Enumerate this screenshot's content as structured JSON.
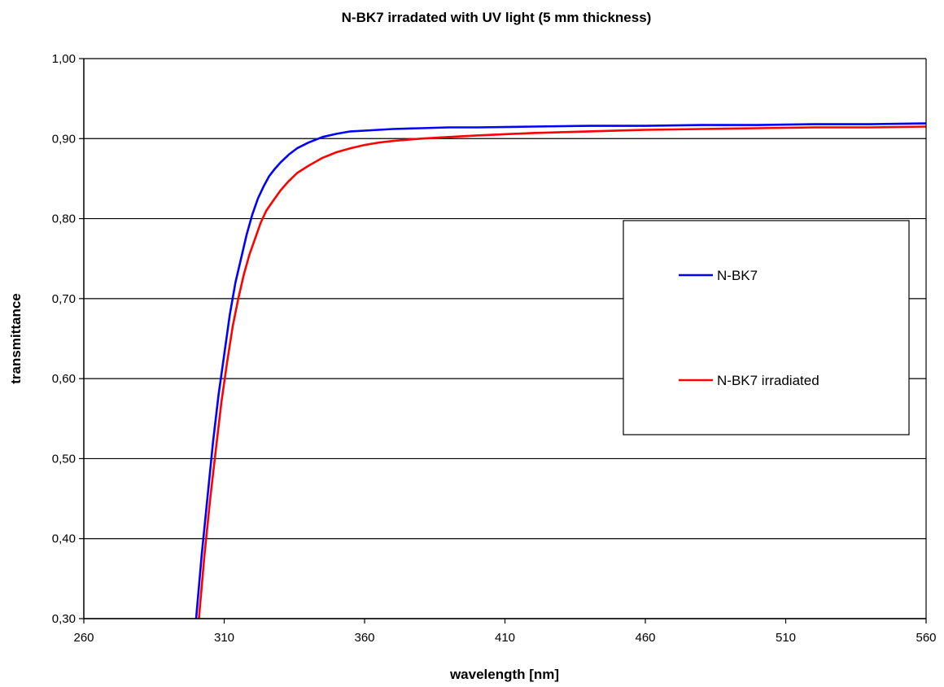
{
  "chart_data": {
    "type": "line",
    "title": "N-BK7 irradated with UV light (5 mm thickness)",
    "xlabel": "wavelength [nm]",
    "ylabel": "transmittance",
    "xlim": [
      260,
      560
    ],
    "ylim": [
      0.3,
      1.0
    ],
    "x_ticks": [
      260,
      310,
      360,
      410,
      460,
      510,
      560
    ],
    "x_tick_labels": [
      "260",
      "310",
      "360",
      "410",
      "460",
      "510",
      "560"
    ],
    "y_ticks": [
      0.3,
      0.4,
      0.5,
      0.6,
      0.7,
      0.8,
      0.9,
      1.0
    ],
    "y_tick_labels": [
      "0,30",
      "0,40",
      "0,50",
      "0,60",
      "0,70",
      "0,80",
      "0,90",
      "1,00"
    ],
    "grid": "horizontal",
    "legend_position": "right",
    "series": [
      {
        "name": "N-BK7",
        "color": "#0000ff",
        "x": [
          300,
          302,
          304,
          306,
          308,
          310,
          312,
          314,
          316,
          318,
          320,
          322,
          324,
          326,
          328,
          330,
          333,
          336,
          340,
          345,
          350,
          355,
          360,
          370,
          380,
          390,
          400,
          420,
          440,
          460,
          480,
          500,
          520,
          540,
          560
        ],
        "y": [
          0.3,
          0.38,
          0.45,
          0.52,
          0.58,
          0.63,
          0.68,
          0.72,
          0.75,
          0.78,
          0.805,
          0.825,
          0.84,
          0.853,
          0.862,
          0.87,
          0.88,
          0.888,
          0.895,
          0.902,
          0.906,
          0.909,
          0.91,
          0.912,
          0.913,
          0.914,
          0.914,
          0.915,
          0.916,
          0.916,
          0.917,
          0.917,
          0.918,
          0.918,
          0.919
        ]
      },
      {
        "name": "N-BK7 irradiated",
        "color": "#ff0000",
        "x": [
          301,
          303,
          305,
          307,
          309,
          311,
          313,
          315,
          317,
          319,
          321,
          323,
          325,
          327,
          330,
          333,
          336,
          340,
          345,
          350,
          355,
          360,
          365,
          370,
          380,
          390,
          400,
          420,
          440,
          460,
          480,
          500,
          520,
          540,
          560
        ],
        "y": [
          0.3,
          0.38,
          0.45,
          0.51,
          0.57,
          0.62,
          0.665,
          0.7,
          0.73,
          0.755,
          0.775,
          0.795,
          0.81,
          0.82,
          0.835,
          0.847,
          0.857,
          0.866,
          0.876,
          0.883,
          0.888,
          0.892,
          0.895,
          0.897,
          0.9,
          0.902,
          0.904,
          0.907,
          0.909,
          0.911,
          0.912,
          0.913,
          0.914,
          0.914,
          0.915
        ]
      }
    ]
  }
}
